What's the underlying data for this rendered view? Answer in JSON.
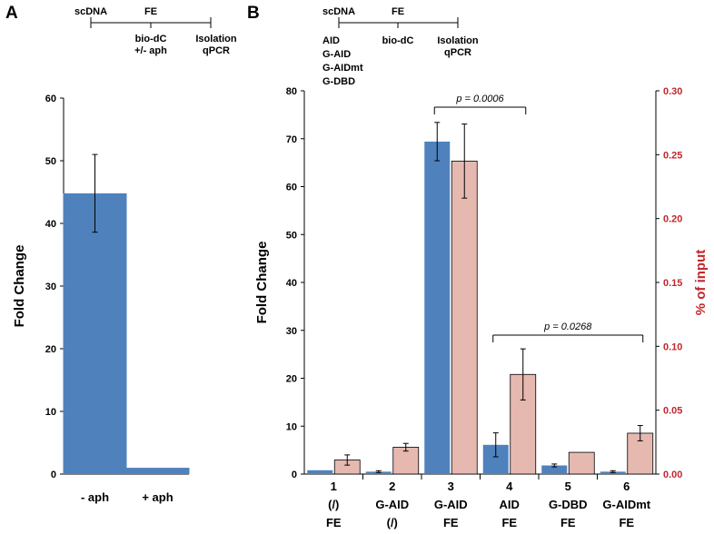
{
  "panels": {
    "a": {
      "letter": "A",
      "scheme": {
        "top": [
          "scDNA",
          "FE"
        ],
        "bottom": [
          "bio-dC",
          "+/- aph",
          "Isolation",
          "qPCR"
        ]
      }
    },
    "b": {
      "letter": "B",
      "scheme": {
        "top": [
          "scDNA",
          "FE"
        ],
        "bottom": [
          "bio-dC",
          "Isolation",
          "qPCR"
        ],
        "constructs": [
          "AID",
          "G-AID",
          "G-AIDmt",
          "G-DBD"
        ]
      }
    }
  },
  "chart_data": [
    {
      "type": "bar",
      "panel": "A",
      "categories": [
        "- aph",
        "+ aph"
      ],
      "series": [
        {
          "values": [
            44.8,
            1.0
          ],
          "error": [
            6.2,
            0.0
          ],
          "color": "#4F81BD"
        }
      ],
      "ylabel": "Fold Change",
      "ylim": [
        0,
        60
      ],
      "yticks": [
        0,
        10,
        20,
        30,
        40,
        50,
        60
      ],
      "grid": false
    },
    {
      "type": "bar",
      "panel": "B",
      "categories": [
        {
          "num": "1",
          "line1": "(/)",
          "line2": "FE"
        },
        {
          "num": "2",
          "line1": "G-AID",
          "line2": "(/)"
        },
        {
          "num": "3",
          "line1": "G-AID",
          "line2": "FE"
        },
        {
          "num": "4",
          "line1": "AID",
          "line2": "FE"
        },
        {
          "num": "5",
          "line1": "G-DBD",
          "line2": "FE"
        },
        {
          "num": "6",
          "line1": "G-AIDmt",
          "line2": "FE"
        }
      ],
      "series": [
        {
          "axis": "left",
          "color": "#4F81BD",
          "values": [
            0.8,
            0.5,
            69.4,
            6.1,
            1.8,
            0.5
          ],
          "error": [
            0.0,
            0.2,
            4.0,
            2.5,
            0.3,
            0.2
          ]
        },
        {
          "axis": "right",
          "color": "#E6B9B0",
          "values": [
            0.011,
            0.021,
            0.245,
            0.078,
            0.017,
            0.032
          ],
          "error": [
            0.004,
            0.003,
            0.029,
            0.02,
            0.0,
            0.006
          ]
        }
      ],
      "ylabel": "Fold Change",
      "ylim": [
        0,
        80
      ],
      "yticks": [
        0,
        10,
        20,
        30,
        40,
        50,
        60,
        70,
        80
      ],
      "y2label": "% of input",
      "y2lim": [
        0,
        0.3
      ],
      "y2ticks": [
        "0.00",
        "0.05",
        "0.10",
        "0.15",
        "0.20",
        "0.25",
        "0.30"
      ],
      "y2color": "#C0282D",
      "annotations": [
        {
          "text": "p = 0.0006",
          "from": 2,
          "to": 3
        },
        {
          "text": "p = 0.0268",
          "from": 3,
          "to": 5
        }
      ],
      "grid": false
    }
  ]
}
